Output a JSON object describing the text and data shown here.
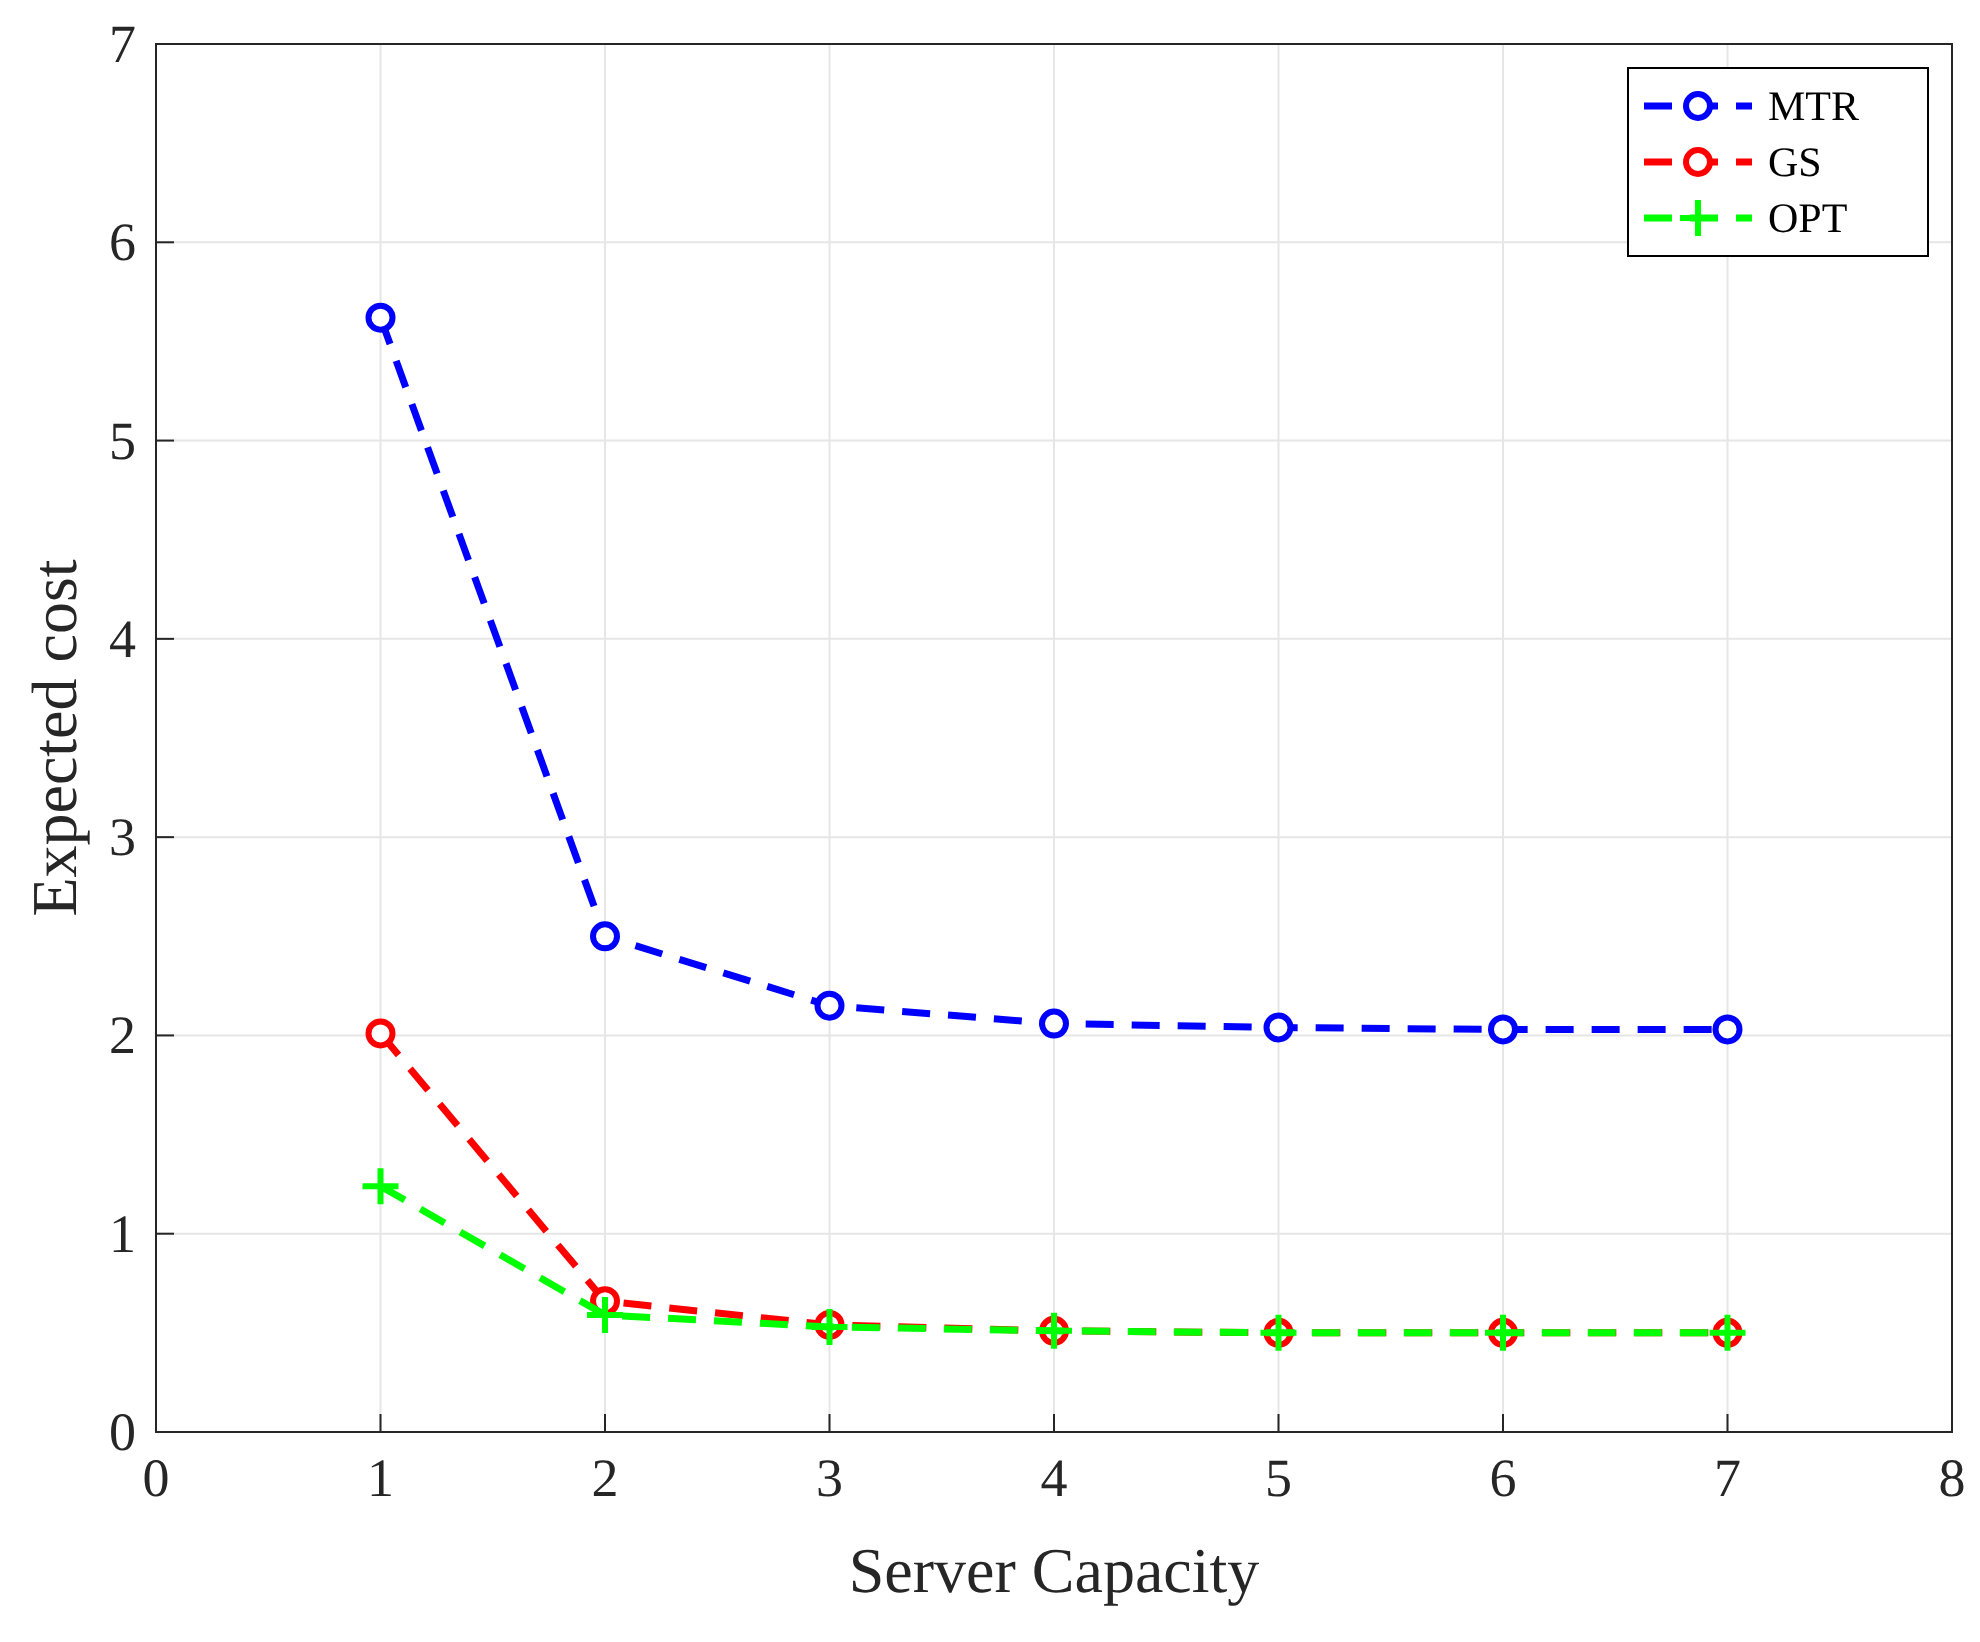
{
  "chart_data": {
    "type": "line",
    "xlabel": "Server Capacity",
    "ylabel": "Expected cost",
    "x": [
      1,
      2,
      3,
      4,
      5,
      6,
      7
    ],
    "series": [
      {
        "name": "MTR",
        "color": "#0000ff",
        "marker": "circle",
        "values": [
          5.62,
          2.5,
          2.15,
          2.06,
          2.04,
          2.03,
          2.03
        ]
      },
      {
        "name": "GS",
        "color": "#ff0000",
        "marker": "circle",
        "values": [
          2.01,
          0.66,
          0.54,
          0.51,
          0.5,
          0.5,
          0.5
        ]
      },
      {
        "name": "OPT",
        "color": "#00ff00",
        "marker": "cross",
        "values": [
          1.24,
          0.59,
          0.53,
          0.51,
          0.5,
          0.5,
          0.5
        ]
      }
    ],
    "line_style": "dashed",
    "xlim": [
      0,
      8
    ],
    "xticks": [
      0,
      1,
      2,
      3,
      4,
      5,
      6,
      7,
      8
    ],
    "ylim": [
      0,
      7
    ],
    "yticks": [
      0,
      1,
      2,
      3,
      4,
      5,
      6,
      7
    ],
    "grid": true,
    "legend": "top right"
  }
}
